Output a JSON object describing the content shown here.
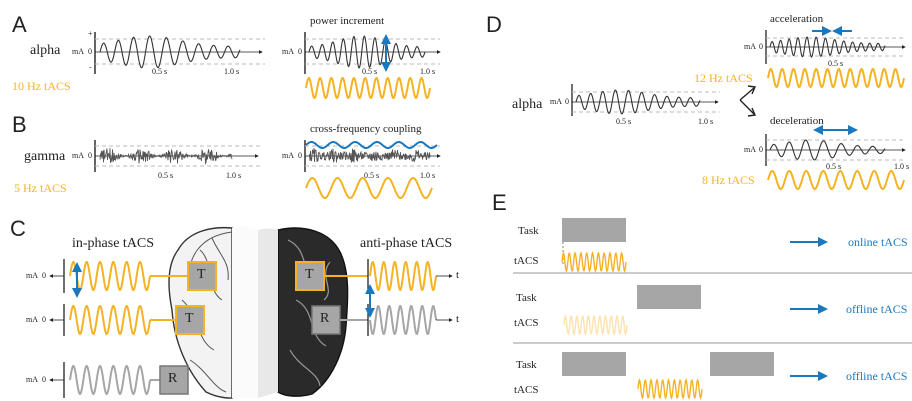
{
  "panels": {
    "a": "A",
    "b": "B",
    "c": "C",
    "d": "D",
    "e": "E"
  },
  "panel_a": {
    "signal": "alpha",
    "stim": "10 Hz tACS",
    "right_title": "power increment",
    "axis_unit": "mA",
    "zero": "0",
    "plus": "+",
    "minus": "-",
    "tick_mid": "0.5 s",
    "tick_end": "1.0 s"
  },
  "panel_b": {
    "signal": "gamma",
    "stim": "5 Hz tACS",
    "right_title": "cross-frequency coupling",
    "axis_unit": "mA",
    "zero": "0",
    "tick_mid": "0.5 s",
    "tick_end": "1.0 s"
  },
  "panel_c": {
    "left_title": "in-phase tACS",
    "right_title": "anti-phase tACS",
    "t_electrode": "T",
    "r_electrode": "R",
    "axis_unit": "mA",
    "zero": "0",
    "time": "t"
  },
  "panel_d": {
    "signal": "alpha",
    "accel": "acceleration",
    "decel": "deceleration",
    "stim_fast": "12 Hz tACS",
    "stim_slow": "8 Hz tACS",
    "axis_unit": "mA",
    "zero": "0",
    "tick_mid": "0.5 s",
    "tick_end": "1.0 s"
  },
  "panel_e": {
    "task": "Task",
    "tacs": "tACS",
    "online": "online tACS",
    "offline1": "offline tACS",
    "offline2": "offline tACS"
  },
  "colors": {
    "orange": "#f5b324",
    "blue": "#1a78be",
    "gray": "#a6a6a6",
    "ink": "#222222"
  }
}
